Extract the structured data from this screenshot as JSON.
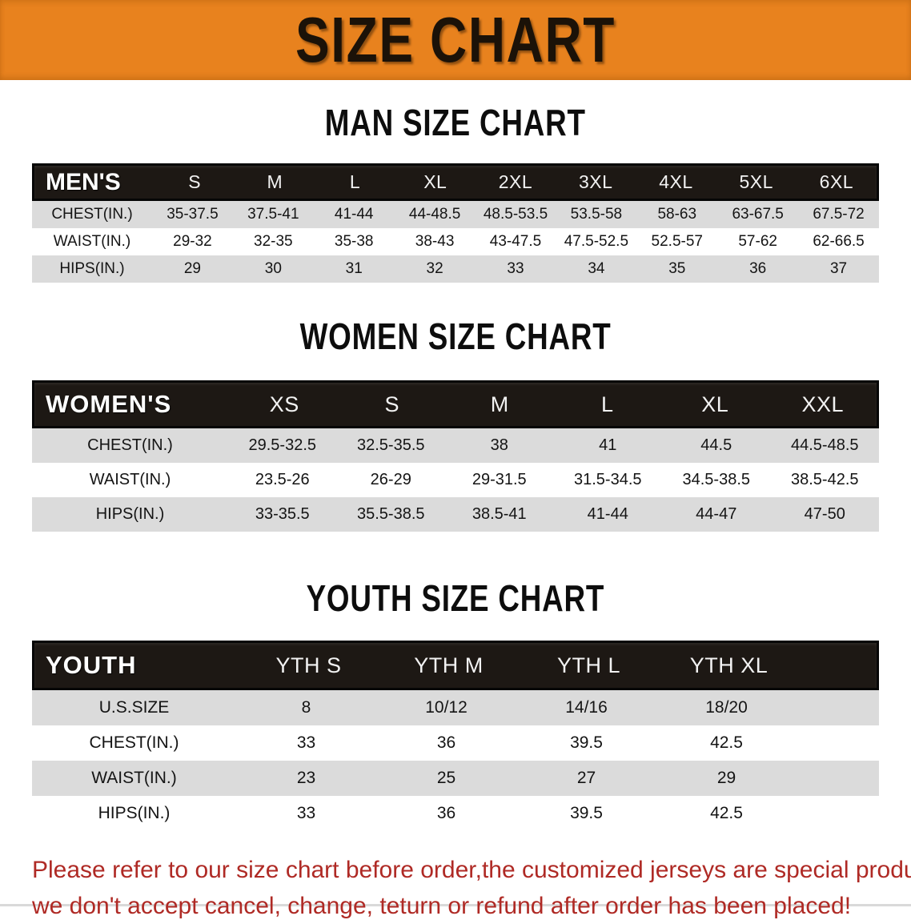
{
  "banner": {
    "title": "SIZE CHART",
    "bg_color": "#E8821E",
    "text_color": "#1B1208"
  },
  "sections": [
    {
      "heading": "MAN SIZE CHART",
      "table": {
        "label": "MEN'S",
        "columns": [
          "S",
          "M",
          "L",
          "XL",
          "2XL",
          "3XL",
          "4XL",
          "5XL",
          "6XL"
        ],
        "rows": [
          {
            "label": "CHEST(IN.)",
            "values": [
              "35-37.5",
              "37.5-41",
              "41-44",
              "44-48.5",
              "48.5-53.5",
              "53.5-58",
              "58-63",
              "63-67.5",
              "67.5-72"
            ]
          },
          {
            "label": "WAIST(IN.)",
            "values": [
              "29-32",
              "32-35",
              "35-38",
              "38-43",
              "43-47.5",
              "47.5-52.5",
              "52.5-57",
              "57-62",
              "62-66.5"
            ]
          },
          {
            "label": "HIPS(IN.)",
            "values": [
              "29",
              "30",
              "31",
              "32",
              "33",
              "34",
              "35",
              "36",
              "37"
            ]
          }
        ]
      }
    },
    {
      "heading": "WOMEN SIZE CHART",
      "table": {
        "label": "WOMEN'S",
        "columns": [
          "XS",
          "S",
          "M",
          "L",
          "XL",
          "XXL"
        ],
        "rows": [
          {
            "label": "CHEST(IN.)",
            "values": [
              "29.5-32.5",
              "32.5-35.5",
              "38",
              "41",
              "44.5",
              "44.5-48.5"
            ]
          },
          {
            "label": "WAIST(IN.)",
            "values": [
              "23.5-26",
              "26-29",
              "29-31.5",
              "31.5-34.5",
              "34.5-38.5",
              "38.5-42.5"
            ]
          },
          {
            "label": "HIPS(IN.)",
            "values": [
              "33-35.5",
              "35.5-38.5",
              "38.5-41",
              "41-44",
              "44-47",
              "47-50"
            ]
          }
        ]
      }
    },
    {
      "heading": "YOUTH SIZE CHART",
      "table": {
        "label": "YOUTH",
        "columns": [
          "YTH S",
          "YTH M",
          "YTH L",
          "YTH XL"
        ],
        "rows": [
          {
            "label": "U.S.SIZE",
            "values": [
              "8",
              "10/12",
              "14/16",
              "18/20"
            ]
          },
          {
            "label": "CHEST(IN.)",
            "values": [
              "33",
              "36",
              "39.5",
              "42.5"
            ]
          },
          {
            "label": "WAIST(IN.)",
            "values": [
              "23",
              "25",
              "27",
              "29"
            ]
          },
          {
            "label": "HIPS(IN.)",
            "values": [
              "33",
              "36",
              "39.5",
              "42.5"
            ]
          }
        ]
      }
    }
  ],
  "footer": {
    "line1": "Please refer to our size chart before order,the customized jerseys are special products,",
    "line2": "we don't accept cancel, change, teturn or refund after order has been placed!",
    "text_color": "#AF2A25"
  },
  "colors": {
    "banner_orange": "#E8821E",
    "table_header_black": "#1D1814",
    "row_shade_gray": "#DBDBDB",
    "row_plain_white": "#FFFFFF",
    "footer_red": "#AF2A25"
  }
}
